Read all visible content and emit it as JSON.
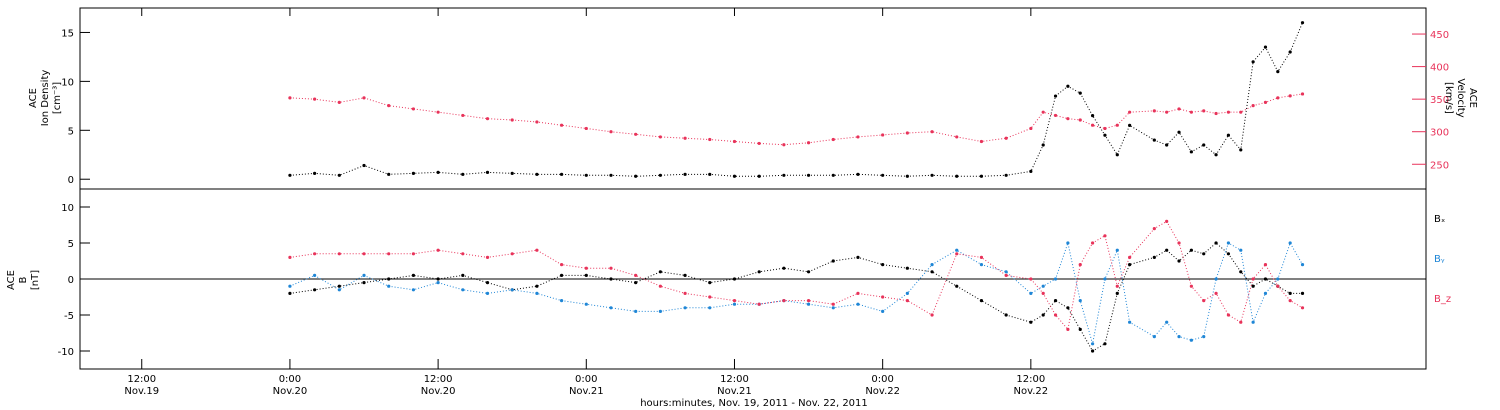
{
  "colors": {
    "black": "#000000",
    "red": "#e8335a",
    "blue": "#1f86d6"
  },
  "chart_data": [
    {
      "type": "scatter",
      "panel": "top",
      "left_axis": {
        "label_lines": [
          "ACE",
          "Ion Density",
          "[cm⁻³]"
        ],
        "ylim": [
          -1,
          17.5
        ],
        "ticks": [
          0,
          5,
          10,
          15
        ]
      },
      "right_axis": {
        "label_lines": [
          "ACE",
          "Velocity",
          "[km/s]"
        ],
        "ylim": [
          212,
          490
        ],
        "ticks": [
          250,
          300,
          350,
          400,
          450
        ]
      },
      "series": [
        {
          "color": "#000000",
          "axis": "left",
          "x": [
            0,
            2,
            4,
            6,
            8,
            10,
            12,
            14,
            16,
            18,
            20,
            22,
            24,
            26,
            28,
            30,
            32,
            34,
            36,
            38,
            40,
            42,
            44,
            46,
            48,
            50,
            52,
            54,
            56,
            58,
            60,
            61,
            62,
            63,
            64,
            65,
            66,
            67,
            68,
            70,
            71,
            72,
            73,
            74,
            75,
            76,
            77,
            78,
            79,
            80,
            81,
            82
          ],
          "y": [
            0.4,
            0.6,
            0.4,
            1.4,
            0.5,
            0.6,
            0.7,
            0.5,
            0.7,
            0.6,
            0.5,
            0.5,
            0.4,
            0.4,
            0.3,
            0.4,
            0.5,
            0.5,
            0.3,
            0.3,
            0.4,
            0.4,
            0.4,
            0.5,
            0.4,
            0.3,
            0.4,
            0.3,
            0.3,
            0.4,
            0.8,
            3.5,
            8.5,
            9.5,
            8.8,
            6.5,
            4.5,
            2.5,
            5.5,
            4,
            3.5,
            4.8,
            2.8,
            3.5,
            2.5,
            4.5,
            3,
            12,
            13.5,
            11,
            13,
            16
          ]
        },
        {
          "color": "#e8335a",
          "axis": "right",
          "x": [
            0,
            2,
            4,
            6,
            8,
            10,
            12,
            14,
            16,
            18,
            20,
            22,
            24,
            26,
            28,
            30,
            32,
            34,
            36,
            38,
            40,
            42,
            44,
            46,
            48,
            50,
            52,
            54,
            56,
            58,
            60,
            61,
            62,
            63,
            64,
            65,
            66,
            67,
            68,
            70,
            71,
            72,
            73,
            74,
            75,
            76,
            77,
            78,
            79,
            80,
            81,
            82
          ],
          "y": [
            352,
            350,
            345,
            352,
            340,
            335,
            330,
            325,
            320,
            318,
            315,
            310,
            305,
            300,
            296,
            292,
            290,
            288,
            285,
            282,
            280,
            283,
            288,
            292,
            295,
            298,
            300,
            292,
            285,
            290,
            305,
            330,
            325,
            320,
            318,
            310,
            305,
            310,
            330,
            332,
            330,
            335,
            330,
            332,
            328,
            330,
            330,
            340,
            345,
            352,
            355,
            358
          ]
        }
      ]
    },
    {
      "type": "scatter",
      "panel": "bottom",
      "left_axis": {
        "label_lines": [
          "ACE",
          "B",
          "[nT]"
        ],
        "ylim": [
          -12.5,
          12.5
        ],
        "ticks": [
          -10,
          -5,
          0,
          5,
          10
        ]
      },
      "legend": [
        "Bₓ",
        "Bᵧ",
        "B_z"
      ],
      "series": [
        {
          "name": "Bₓ",
          "color": "#000000",
          "x": [
            0,
            2,
            4,
            6,
            8,
            10,
            12,
            14,
            16,
            18,
            20,
            22,
            24,
            26,
            28,
            30,
            32,
            34,
            36,
            38,
            40,
            42,
            44,
            46,
            48,
            50,
            52,
            54,
            56,
            58,
            60,
            61,
            62,
            63,
            64,
            65,
            66,
            67,
            68,
            70,
            71,
            72,
            73,
            74,
            75,
            76,
            77,
            78,
            79,
            80,
            81,
            82
          ],
          "y": [
            -2,
            -1.5,
            -1,
            -0.5,
            0,
            0.5,
            0,
            0.5,
            -0.5,
            -1.5,
            -1,
            0.5,
            0.5,
            0,
            -0.5,
            1,
            0.5,
            -0.5,
            0,
            1,
            1.5,
            1,
            2.5,
            3,
            2,
            1.5,
            1,
            -1,
            -3,
            -5,
            -6,
            -5,
            -3,
            -4,
            -7,
            -10,
            -9,
            -2,
            2,
            3,
            4,
            2.5,
            4,
            3.5,
            5,
            3.5,
            1,
            -1,
            0,
            -1,
            -2,
            -2
          ]
        },
        {
          "name": "Bᵧ",
          "color": "#1f86d6",
          "x": [
            0,
            2,
            4,
            6,
            8,
            10,
            12,
            14,
            16,
            18,
            20,
            22,
            24,
            26,
            28,
            30,
            32,
            34,
            36,
            38,
            40,
            42,
            44,
            46,
            48,
            50,
            52,
            54,
            56,
            58,
            60,
            61,
            62,
            63,
            64,
            65,
            66,
            67,
            68,
            70,
            71,
            72,
            73,
            74,
            75,
            76,
            77,
            78,
            79,
            80,
            81,
            82
          ],
          "y": [
            -1,
            0.5,
            -1.5,
            0.5,
            -1,
            -1.5,
            -0.5,
            -1.5,
            -2,
            -1.5,
            -2,
            -3,
            -3.5,
            -4,
            -4.5,
            -4.5,
            -4,
            -4,
            -3.5,
            -3.5,
            -3,
            -3.5,
            -4,
            -3.5,
            -4.5,
            -2,
            2,
            4,
            2,
            1,
            -2,
            -1,
            0,
            5,
            -3,
            -9,
            0,
            4,
            -6,
            -8,
            -6,
            -8,
            -8.5,
            -8,
            0,
            5,
            4,
            -6,
            -2,
            0,
            5,
            2
          ]
        },
        {
          "name": "B_z",
          "color": "#e8335a",
          "x": [
            0,
            2,
            4,
            6,
            8,
            10,
            12,
            14,
            16,
            18,
            20,
            22,
            24,
            26,
            28,
            30,
            32,
            34,
            36,
            38,
            40,
            42,
            44,
            46,
            48,
            50,
            52,
            54,
            56,
            58,
            60,
            61,
            62,
            63,
            64,
            65,
            66,
            67,
            68,
            70,
            71,
            72,
            73,
            74,
            75,
            76,
            77,
            78,
            79,
            80,
            81,
            82
          ],
          "y": [
            3,
            3.5,
            3.5,
            3.5,
            3.5,
            3.5,
            4,
            3.5,
            3,
            3.5,
            4,
            2,
            1.5,
            1.5,
            0.5,
            -1,
            -2,
            -2.5,
            -3,
            -3.5,
            -3,
            -3,
            -3.5,
            -2,
            -2.5,
            -3,
            -5,
            3.5,
            3,
            0.5,
            0,
            -2,
            -5,
            -7,
            2,
            5,
            6,
            -1,
            3,
            7,
            8,
            5,
            -1,
            -3,
            -2,
            -5,
            -6,
            0,
            2,
            -1,
            -3,
            -4
          ]
        }
      ]
    }
  ],
  "x_axis": {
    "range_hours": [
      -17,
      92
    ],
    "label": "hours:minutes, Nov. 19, 2011 - Nov. 22, 2011",
    "ticks": [
      {
        "t": -12,
        "time": "12:00",
        "date": "Nov.19"
      },
      {
        "t": 0,
        "time": "0:00",
        "date": "Nov.20"
      },
      {
        "t": 12,
        "time": "12:00",
        "date": "Nov.20"
      },
      {
        "t": 24,
        "time": "0:00",
        "date": "Nov.21"
      },
      {
        "t": 36,
        "time": "12:00",
        "date": "Nov.21"
      },
      {
        "t": 48,
        "time": "0:00",
        "date": "Nov.22"
      },
      {
        "t": 60,
        "time": "12:00",
        "date": "Nov.22"
      }
    ]
  }
}
